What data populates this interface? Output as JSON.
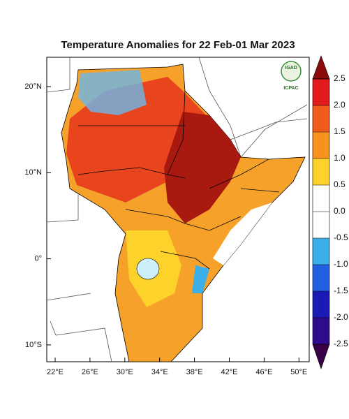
{
  "map": {
    "title": "Temperature Anomalies for 22 Feb-01 Mar 2023",
    "lon_labels": [
      "22°E",
      "26°E",
      "30°E",
      "34°E",
      "38°E",
      "42°E",
      "46°E",
      "50°E"
    ],
    "lat_labels": [
      "20°N",
      "10°N",
      "0°",
      "10°S"
    ],
    "logo": {
      "top": "IGAD",
      "bottom": "ICPAC"
    },
    "colorbar": {
      "ticks": [
        2.5,
        {
          "value": 2,
          "label": "2.0"
        },
        1.5,
        {
          "value": 1,
          "label": "1.0"
        },
        0.5,
        {
          "value": 0,
          "label": "0.0"
        },
        -0.5,
        {
          "value": -1,
          "label": "-1.0"
        },
        -1.5,
        {
          "value": -2,
          "label": "-2.0"
        },
        -2.5
      ],
      "lim": [
        -2.5,
        2.5
      ],
      "colors": [
        "#3a0046",
        "#2e0a8c",
        "#1a1ab4",
        "#1f5fe0",
        "#3caee8",
        "#ffffff",
        "#ffffff",
        "#fcd22b",
        "#f8921e",
        "#f05a1a",
        "#e31a1c",
        "#8b0a0a"
      ]
    }
  }
}
